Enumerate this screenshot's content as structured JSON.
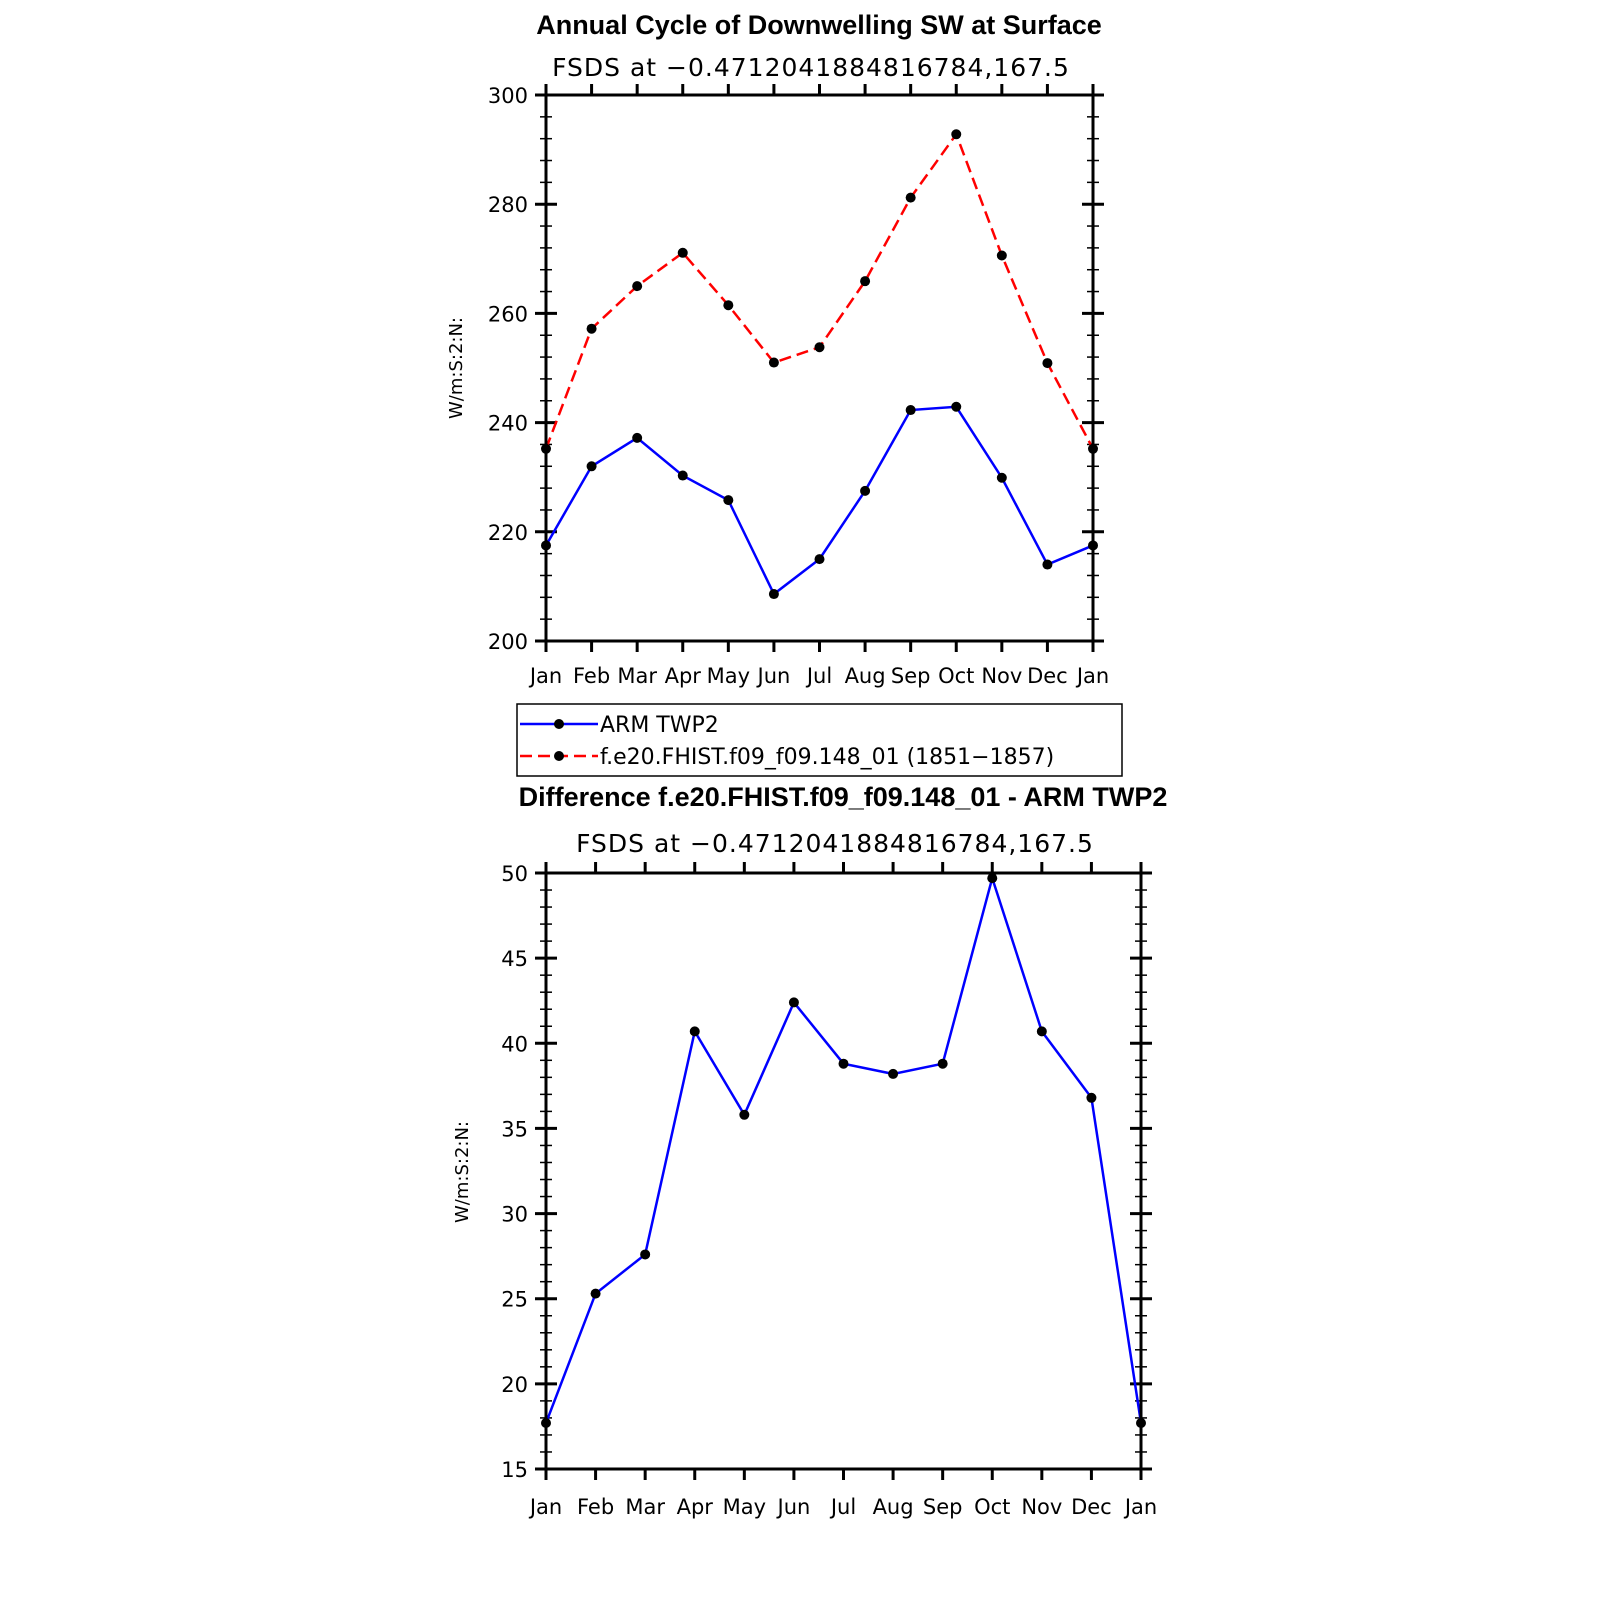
{
  "chart_data": [
    {
      "type": "line",
      "title": "Annual Cycle of Downwelling SW at Surface",
      "subtitle": "FSDS at −0.4712041884816784,167.5",
      "ylabel": "W/m:S:2:N:",
      "xlabel": "",
      "ylim": [
        200,
        300
      ],
      "yticks": [
        "200",
        "220",
        "240",
        "260",
        "280",
        "300"
      ],
      "categories": [
        "Jan",
        "Feb",
        "Mar",
        "Apr",
        "May",
        "Jun",
        "Jul",
        "Aug",
        "Sep",
        "Oct",
        "Nov",
        "Dec",
        "Jan"
      ],
      "grid": false,
      "series": [
        {
          "name": "ARM  TWP2",
          "color": "#0000ff",
          "dash": "solid",
          "values": [
            217.5,
            232,
            237.2,
            230.3,
            225.8,
            208.6,
            215,
            227.5,
            242.3,
            242.9,
            229.9,
            214,
            217.5
          ]
        },
        {
          "name": "f.e20.FHIST.f09_f09.148_01  (1851−1857)",
          "color": "#ff0000",
          "dash": "dashed",
          "values": [
            235.2,
            257.2,
            265,
            271.1,
            261.5,
            251,
            253.8,
            265.9,
            281.2,
            292.8,
            270.6,
            250.9,
            235.2
          ]
        }
      ],
      "legend_position": "below"
    },
    {
      "type": "line",
      "title": "Difference f.e20.FHIST.f09_f09.148_01 - ARM TWP2",
      "subtitle": "FSDS at −0.4712041884816784,167.5",
      "ylabel": "W/m:S:2:N:",
      "xlabel": "",
      "ylim": [
        15,
        50
      ],
      "yticks": [
        "15",
        "20",
        "25",
        "30",
        "35",
        "40",
        "45",
        "50"
      ],
      "categories": [
        "Jan",
        "Feb",
        "Mar",
        "Apr",
        "May",
        "Jun",
        "Jul",
        "Aug",
        "Sep",
        "Oct",
        "Nov",
        "Dec",
        "Jan"
      ],
      "grid": false,
      "series": [
        {
          "color": "#0000ff",
          "dash": "solid",
          "values": [
            17.7,
            25.3,
            27.6,
            40.7,
            35.8,
            42.4,
            38.8,
            38.2,
            38.8,
            49.7,
            40.7,
            36.8,
            17.7
          ]
        }
      ]
    }
  ]
}
